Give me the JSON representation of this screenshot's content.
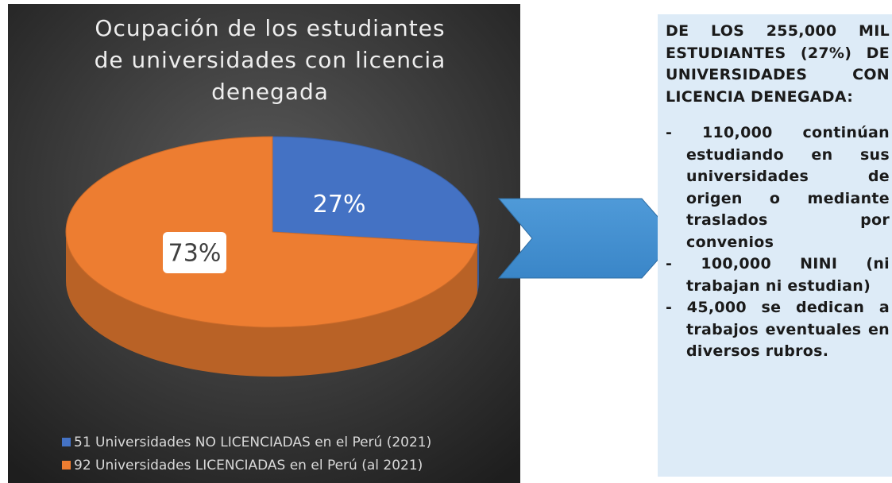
{
  "chart_data": {
    "type": "pie",
    "title": "Ocupación de los estudiantes de universidades con licencia denegada",
    "categories": [
      "51 Universidades NO LICENCIADAS en el Perú (2021)",
      "92 Universidades LICENCIADAS en el Perú (al 2021)"
    ],
    "values": [
      27,
      73
    ],
    "value_labels": [
      "27%",
      "73%"
    ],
    "colors": [
      "#4472c4",
      "#ed7d31"
    ],
    "legend": "bottom"
  },
  "panel": {
    "heading": "DE LOS 255,000 MIL ESTUDIANTES (27%) DE UNIVERSIDADES CON LICENCIA DENEGADA:",
    "items": [
      "- 110,000 continúan estudiando en sus universidades de origen o mediante traslados por convenios",
      "- 100,000 NINI (ni trabajan ni estudian)",
      "- 45,000 se dedican a trabajos eventuales en diversos rubros."
    ]
  }
}
